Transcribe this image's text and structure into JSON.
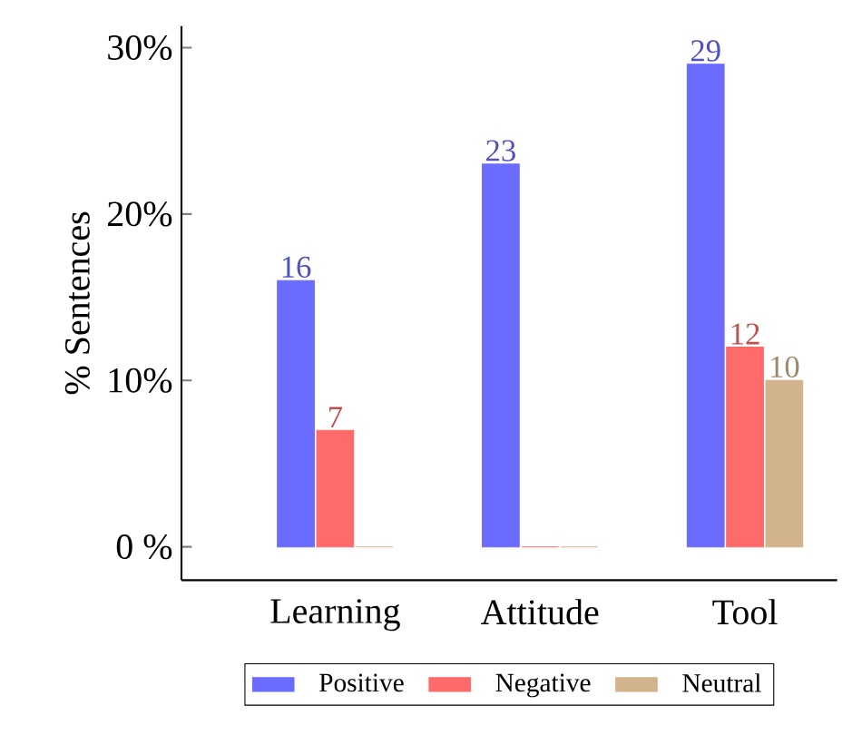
{
  "chart_data": {
    "type": "bar",
    "ylabel": "% Sentences",
    "categories": [
      "Learning",
      "Attitude",
      "Tool"
    ],
    "series": [
      {
        "name": "Positive",
        "color": "#6b6bff",
        "values": [
          16,
          23,
          29
        ],
        "value_labels": [
          "16",
          "23",
          "29"
        ]
      },
      {
        "name": "Negative",
        "color": "#ff6b6b",
        "values": [
          7,
          0,
          12
        ],
        "value_labels": [
          "7",
          null,
          "12"
        ]
      },
      {
        "name": "Neutral",
        "color": "#d2b48c",
        "values": [
          0,
          0,
          10
        ],
        "value_labels": [
          null,
          null,
          "10"
        ]
      }
    ],
    "ylim": [
      -2,
      31.3
    ],
    "yticks": [
      {
        "value": 0,
        "label": "0 %"
      },
      {
        "value": 10,
        "label": "10%"
      },
      {
        "value": 20,
        "label": "20%"
      },
      {
        "value": 30,
        "label": "30%"
      }
    ],
    "legend": "bottom"
  }
}
